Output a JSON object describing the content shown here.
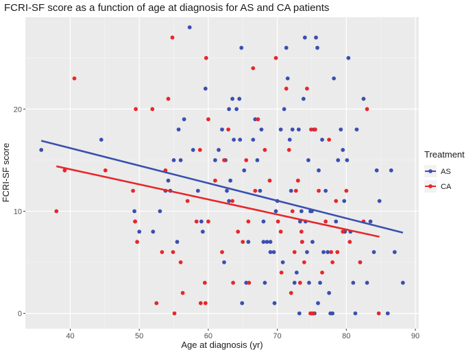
{
  "chart_data": {
    "type": "scatter",
    "title": "FCRI-SF score as a function of age at diagnosis for AS and CA patients",
    "xlabel": "Age at diagnosis (yr)",
    "ylabel": "FCRI-SF score",
    "xlim": [
      33.5,
      90.5
    ],
    "ylim": [
      -1.5,
      29
    ],
    "x_ticks": [
      40,
      50,
      60,
      70,
      80,
      90
    ],
    "y_ticks": [
      0,
      10,
      20
    ],
    "grid": true,
    "legend": {
      "title": "Treatment",
      "position": "right"
    },
    "series": [
      {
        "name": "AS",
        "color": "#3a4fb0",
        "points": [
          [
            35.8,
            16
          ],
          [
            44.5,
            17
          ],
          [
            49.3,
            10
          ],
          [
            49.4,
            9
          ],
          [
            50,
            8
          ],
          [
            52,
            8
          ],
          [
            53,
            10
          ],
          [
            53.8,
            12
          ],
          [
            54.2,
            13
          ],
          [
            54.5,
            12
          ],
          [
            55,
            15
          ],
          [
            55.5,
            7
          ],
          [
            55.7,
            18
          ],
          [
            56,
            15
          ],
          [
            56.5,
            19
          ],
          [
            57.3,
            28
          ],
          [
            57.8,
            16
          ],
          [
            58.5,
            12
          ],
          [
            59,
            9
          ],
          [
            59.2,
            8
          ],
          [
            59.6,
            22
          ],
          [
            61,
            15
          ],
          [
            61.5,
            16
          ],
          [
            62,
            18
          ],
          [
            62.5,
            15
          ],
          [
            62.3,
            5
          ],
          [
            62.7,
            12
          ],
          [
            63,
            11
          ],
          [
            63,
            20
          ],
          [
            63.2,
            13
          ],
          [
            63.5,
            21
          ],
          [
            63.7,
            17
          ],
          [
            64.1,
            20
          ],
          [
            64.5,
            21
          ],
          [
            64.6,
            17
          ],
          [
            64.8,
            26
          ],
          [
            64.9,
            1
          ],
          [
            65.2,
            14
          ],
          [
            65.5,
            3
          ],
          [
            65.8,
            7
          ],
          [
            66.5,
            17
          ],
          [
            66.8,
            19
          ],
          [
            67.1,
            15
          ],
          [
            67.5,
            12
          ],
          [
            67.7,
            18
          ],
          [
            68,
            9
          ],
          [
            68,
            7
          ],
          [
            68.2,
            3
          ],
          [
            68.5,
            7
          ],
          [
            69,
            6
          ],
          [
            69,
            7
          ],
          [
            69.5,
            6
          ],
          [
            69.6,
            1
          ],
          [
            69.8,
            10
          ],
          [
            70,
            11
          ],
          [
            70.5,
            18
          ],
          [
            70.8,
            5
          ],
          [
            71,
            20
          ],
          [
            71.3,
            26
          ],
          [
            71.5,
            23
          ],
          [
            71.8,
            17
          ],
          [
            72,
            12
          ],
          [
            72.2,
            18
          ],
          [
            72.5,
            3
          ],
          [
            72.8,
            4
          ],
          [
            73.1,
            18
          ],
          [
            73.2,
            0
          ],
          [
            73.3,
            9
          ],
          [
            73.5,
            10
          ],
          [
            73.6,
            7
          ],
          [
            73.8,
            21
          ],
          [
            74,
            27
          ],
          [
            74.1,
            9
          ],
          [
            74.3,
            6
          ],
          [
            74.5,
            15
          ],
          [
            74.6,
            3
          ],
          [
            74.8,
            10
          ],
          [
            75,
            10
          ],
          [
            75.1,
            7
          ],
          [
            75.3,
            18
          ],
          [
            75.4,
            0
          ],
          [
            75.6,
            27
          ],
          [
            75.8,
            26
          ],
          [
            75.9,
            1
          ],
          [
            76,
            14
          ],
          [
            76.2,
            3
          ],
          [
            76.5,
            17
          ],
          [
            76.7,
            6
          ],
          [
            77,
            12
          ],
          [
            77.3,
            6
          ],
          [
            77.5,
            2
          ],
          [
            77.7,
            0
          ],
          [
            78,
            0
          ],
          [
            78.2,
            23
          ],
          [
            78.5,
            9
          ],
          [
            78.8,
            15
          ],
          [
            79.2,
            18
          ],
          [
            79.5,
            16
          ],
          [
            79.7,
            11
          ],
          [
            79.8,
            8
          ],
          [
            80.1,
            15
          ],
          [
            80.3,
            25
          ],
          [
            80.6,
            8
          ],
          [
            81,
            3
          ],
          [
            81.3,
            0
          ],
          [
            81.5,
            18
          ],
          [
            82,
            5
          ],
          [
            82.5,
            21
          ],
          [
            83,
            3
          ],
          [
            83.5,
            9
          ],
          [
            84,
            6
          ],
          [
            84.4,
            14
          ],
          [
            84.8,
            11
          ],
          [
            86,
            0
          ],
          [
            86.5,
            14
          ],
          [
            87,
            6
          ],
          [
            88.2,
            3
          ]
        ],
        "trend": {
          "x": [
            35.8,
            88.2
          ],
          "y": [
            16.9,
            7.9
          ]
        }
      },
      {
        "name": "CA",
        "color": "#e8262b",
        "points": [
          [
            38,
            10
          ],
          [
            39.2,
            14
          ],
          [
            40.6,
            23
          ],
          [
            45.1,
            14
          ],
          [
            49.1,
            12
          ],
          [
            49.4,
            9
          ],
          [
            49.7,
            7
          ],
          [
            49.5,
            20
          ],
          [
            51.9,
            20
          ],
          [
            52.5,
            1
          ],
          [
            53.3,
            6
          ],
          [
            53.8,
            14
          ],
          [
            54.2,
            21
          ],
          [
            54.8,
            27
          ],
          [
            54.9,
            6
          ],
          [
            55.1,
            0
          ],
          [
            56,
            5
          ],
          [
            56.3,
            2
          ],
          [
            57,
            11
          ],
          [
            58.3,
            9
          ],
          [
            58.8,
            16
          ],
          [
            58.9,
            1
          ],
          [
            59.5,
            3
          ],
          [
            59.6,
            1
          ],
          [
            59.7,
            25
          ],
          [
            60,
            19
          ],
          [
            60,
            9
          ],
          [
            61,
            13
          ],
          [
            62,
            6
          ],
          [
            62.3,
            15
          ],
          [
            62.9,
            18
          ],
          [
            63.5,
            11
          ],
          [
            63.6,
            3
          ],
          [
            64.3,
            8
          ],
          [
            65,
            7
          ],
          [
            65.5,
            15
          ],
          [
            65.8,
            9
          ],
          [
            65.9,
            3
          ],
          [
            66.5,
            24
          ],
          [
            66.8,
            12
          ],
          [
            67.2,
            19
          ],
          [
            68.2,
            16
          ],
          [
            68.9,
            13
          ],
          [
            69.8,
            25
          ],
          [
            70.1,
            9
          ],
          [
            70.5,
            8
          ],
          [
            70.6,
            4
          ],
          [
            71.3,
            22
          ],
          [
            71.7,
            16
          ],
          [
            72,
            2
          ],
          [
            72.2,
            10
          ],
          [
            72.5,
            6
          ],
          [
            72.7,
            12
          ],
          [
            73,
            13
          ],
          [
            73.3,
            3
          ],
          [
            73.5,
            8
          ],
          [
            73.6,
            7
          ],
          [
            73.9,
            5
          ],
          [
            74.3,
            22
          ],
          [
            74.8,
            0
          ],
          [
            74.9,
            18
          ],
          [
            75,
            0
          ],
          [
            75.2,
            0
          ],
          [
            75.5,
            18
          ],
          [
            76,
            12
          ],
          [
            76.5,
            4
          ],
          [
            77,
            9
          ],
          [
            77.5,
            17
          ],
          [
            77.8,
            6
          ],
          [
            78,
            5
          ],
          [
            78.5,
            11
          ],
          [
            78.7,
            6
          ],
          [
            79.5,
            8
          ],
          [
            80,
            12
          ],
          [
            80.5,
            7
          ],
          [
            82,
            5
          ],
          [
            82.5,
            9
          ],
          [
            83,
            20
          ],
          [
            84.7,
            0
          ]
        ],
        "trend": {
          "x": [
            38,
            84.8
          ],
          "y": [
            14.4,
            7.5
          ]
        }
      }
    ]
  }
}
